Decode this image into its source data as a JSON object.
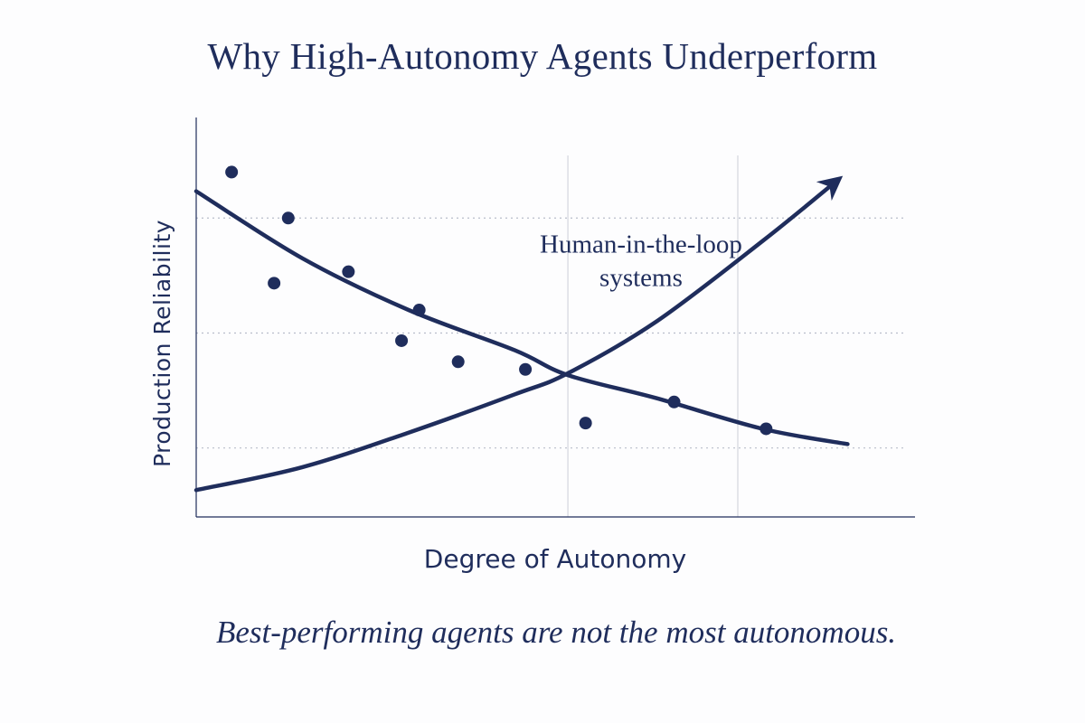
{
  "colors": {
    "ink": "#1f2d5c",
    "grid": "#b8bdc9",
    "background": "#fdfdfe"
  },
  "chart_data": {
    "type": "scatter",
    "title": "Why High-Autonomy Agents Underperform",
    "xlabel": "Degree of Autonomy",
    "ylabel": "Production Reliability",
    "xlim": [
      0,
      10
    ],
    "ylim": [
      0,
      10
    ],
    "grid": {
      "horizontal_dotted_y": [
        1.8,
        4.8,
        7.8
      ],
      "vertical_solid_x": [
        5.25,
        7.65
      ]
    },
    "points": [
      {
        "x": 0.5,
        "y": 9.0
      },
      {
        "x": 1.1,
        "y": 6.1
      },
      {
        "x": 1.3,
        "y": 7.8
      },
      {
        "x": 2.15,
        "y": 6.4
      },
      {
        "x": 2.9,
        "y": 4.6
      },
      {
        "x": 3.15,
        "y": 5.4
      },
      {
        "x": 3.7,
        "y": 4.05
      },
      {
        "x": 4.65,
        "y": 3.85
      },
      {
        "x": 5.5,
        "y": 2.45
      },
      {
        "x": 6.75,
        "y": 3.0
      },
      {
        "x": 8.05,
        "y": 2.3
      }
    ],
    "series": [
      {
        "kind": "trend-decreasing",
        "x": [
          0.0,
          1.5,
          3.0,
          4.5,
          5.25,
          6.5,
          8.0,
          9.2
        ],
        "y": [
          8.5,
          6.75,
          5.4,
          4.35,
          3.7,
          3.1,
          2.3,
          1.9
        ]
      },
      {
        "kind": "trend-increasing-arrow",
        "x": [
          0.0,
          1.5,
          3.0,
          4.5,
          5.25,
          6.5,
          8.0,
          9.0
        ],
        "y": [
          0.7,
          1.3,
          2.2,
          3.2,
          3.75,
          5.1,
          7.2,
          8.7
        ]
      }
    ],
    "annotation": {
      "text_lines": [
        "Human-in-the-loop",
        "systems"
      ],
      "x": 5.9,
      "y": 6.8
    },
    "caption": "Best-performing agents are not the most autonomous."
  }
}
